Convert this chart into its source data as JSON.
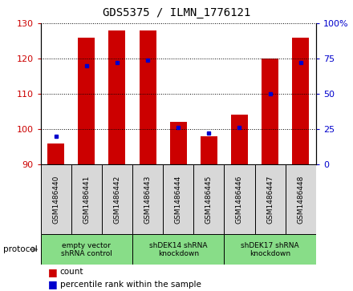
{
  "title": "GDS5375 / ILMN_1776121",
  "samples": [
    "GSM1486440",
    "GSM1486441",
    "GSM1486442",
    "GSM1486443",
    "GSM1486444",
    "GSM1486445",
    "GSM1486446",
    "GSM1486447",
    "GSM1486448"
  ],
  "count_values": [
    96,
    126,
    128,
    128,
    102,
    98,
    104,
    120,
    126
  ],
  "percentile_values": [
    20,
    70,
    72,
    74,
    26,
    22,
    26,
    50,
    72
  ],
  "ylim_left": [
    90,
    130
  ],
  "ylim_right": [
    0,
    100
  ],
  "yticks_left": [
    90,
    100,
    110,
    120,
    130
  ],
  "yticks_right": [
    0,
    25,
    50,
    75,
    100
  ],
  "bar_color": "#cc0000",
  "dot_color": "#0000cc",
  "bar_bottom": 90,
  "protocols": [
    {
      "label": "empty vector\nshRNA control",
      "start": 0,
      "end": 3
    },
    {
      "label": "shDEK14 shRNA\nknockdown",
      "start": 3,
      "end": 6
    },
    {
      "label": "shDEK17 shRNA\nknockdown",
      "start": 6,
      "end": 9
    }
  ],
  "protocol_label": "protocol",
  "legend_count": "count",
  "legend_percentile": "percentile rank within the sample",
  "bar_width": 0.55,
  "background_color": "#ffffff",
  "tick_label_color_left": "#cc0000",
  "tick_label_color_right": "#0000cc",
  "title_fontsize": 10,
  "tick_fontsize": 8,
  "protocol_box_color": "#88dd88",
  "sample_box_color": "#d8d8d8",
  "grid_color": "#000000"
}
